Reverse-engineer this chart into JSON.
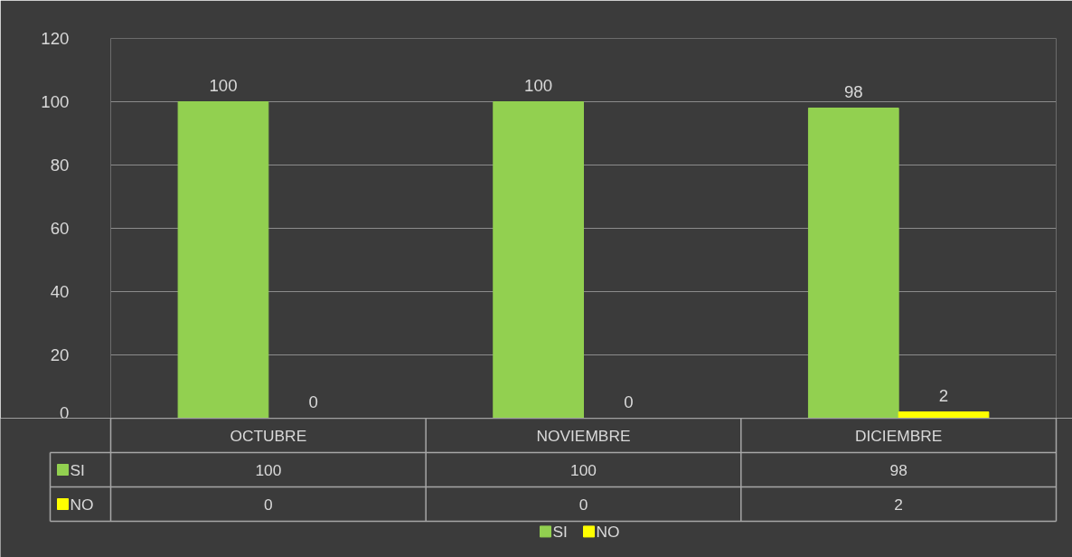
{
  "chart_data": {
    "type": "bar",
    "categories": [
      "OCTUBRE",
      "NOVIEMBRE",
      "DICIEMBRE"
    ],
    "series": [
      {
        "name": "SI",
        "color": "#92d050",
        "values": [
          100,
          100,
          98
        ],
        "value_labels": [
          "100",
          "100",
          "98"
        ]
      },
      {
        "name": "NO",
        "color": "#ffff00",
        "values": [
          0,
          0,
          2
        ],
        "value_labels": [
          "0",
          "0",
          "2"
        ]
      }
    ],
    "ylim": [
      0,
      120
    ],
    "yticks": [
      0,
      20,
      40,
      60,
      80,
      100,
      120
    ],
    "cell_labels": [
      [
        "100",
        "100",
        "98"
      ],
      [
        "0",
        "0",
        "2"
      ]
    ],
    "grid": "y",
    "legend": "bottom"
  }
}
